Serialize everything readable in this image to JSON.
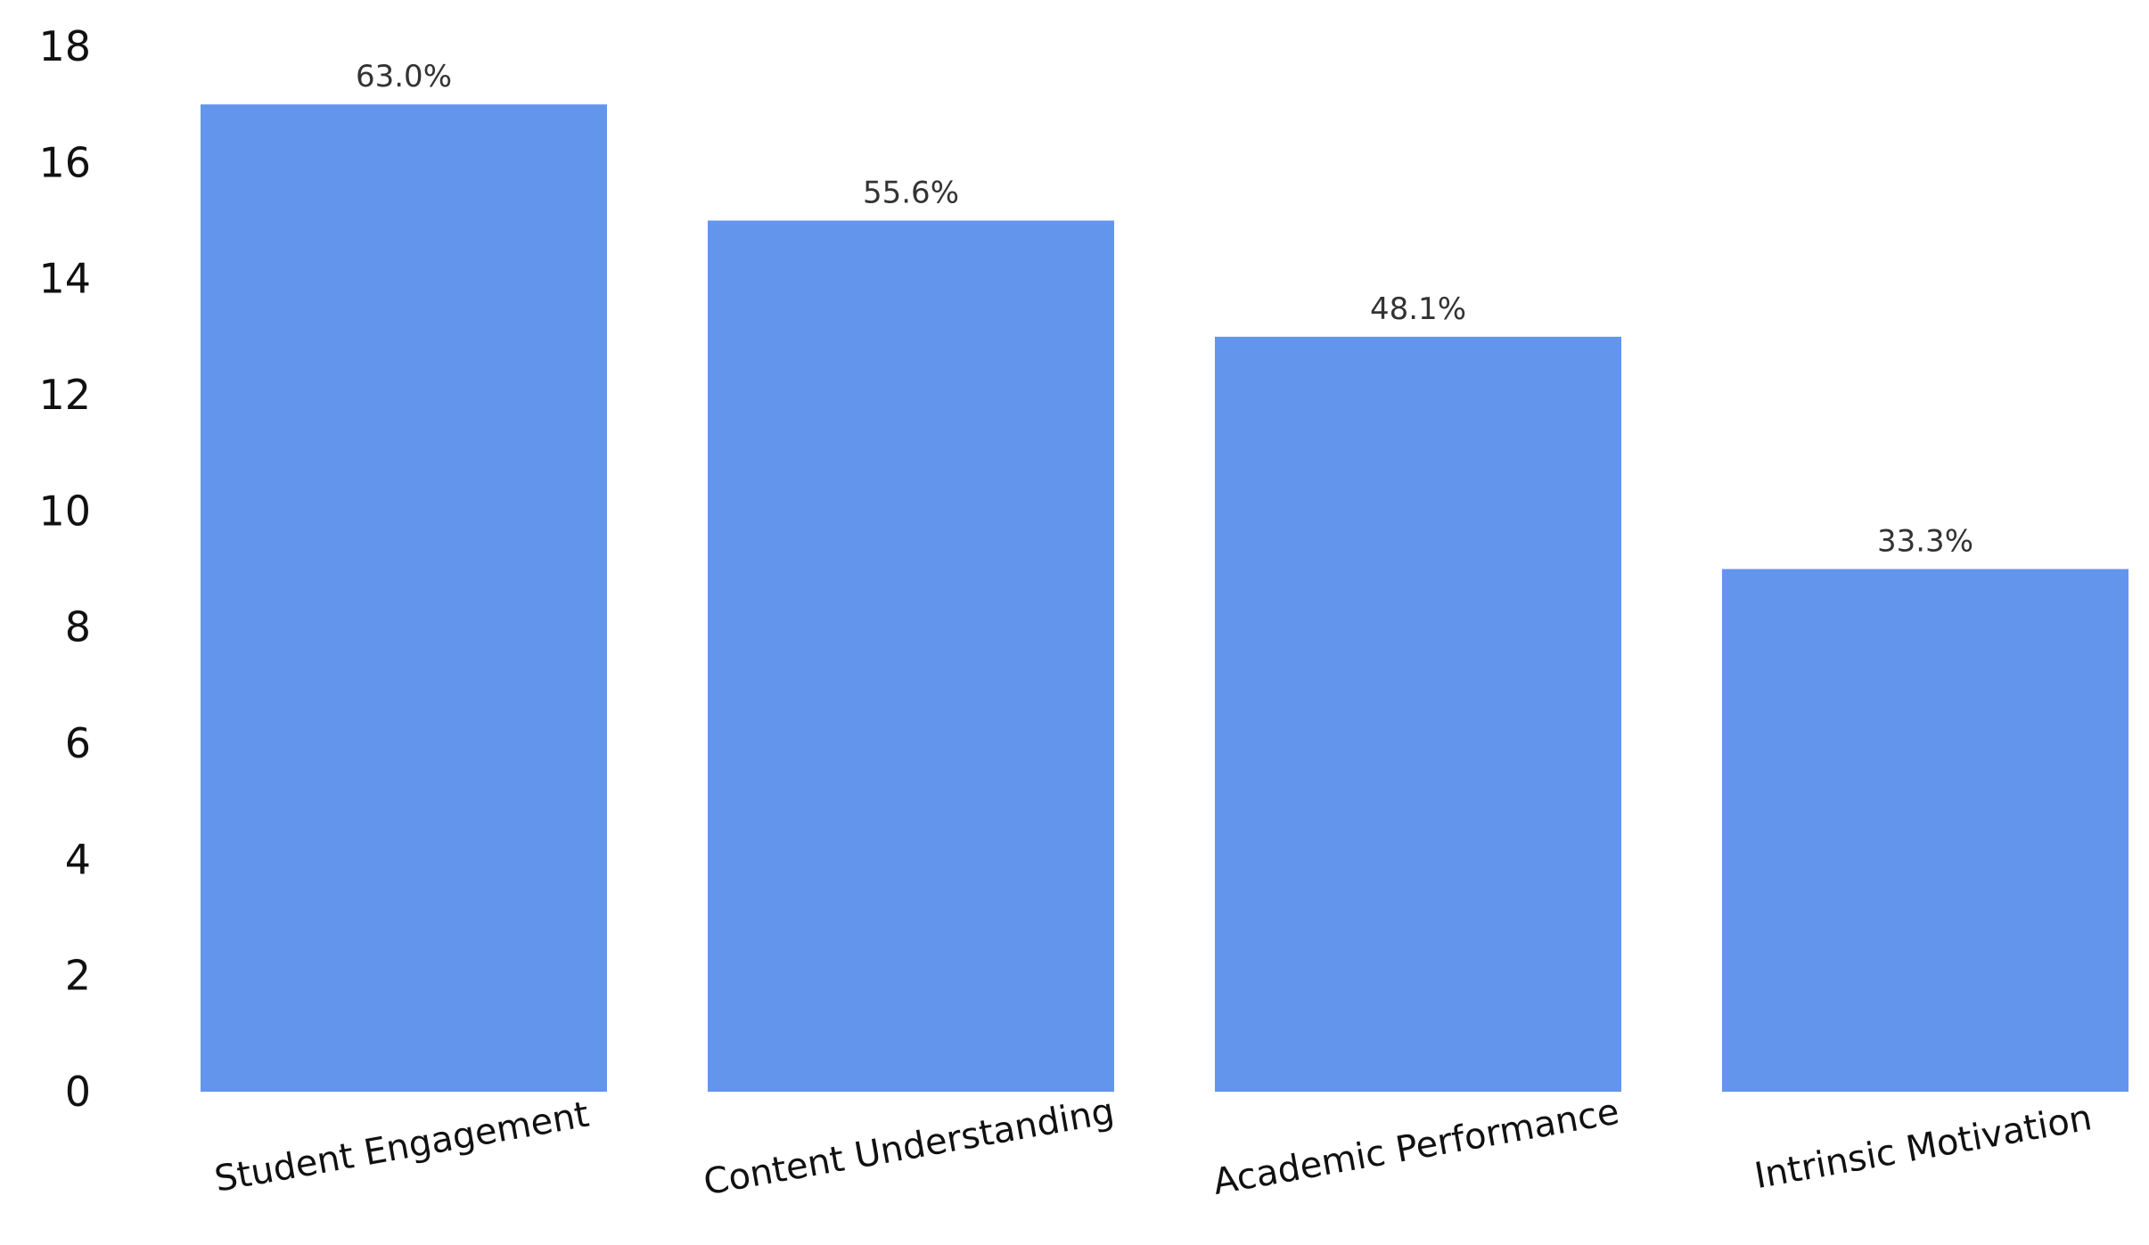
{
  "chart_data": {
    "type": "bar",
    "title": "",
    "xlabel": "",
    "ylabel": "",
    "categories": [
      "Student Engagement",
      "Content Understanding",
      "Academic Performance",
      "Intrinsic Motivation"
    ],
    "values": [
      17,
      15,
      13,
      9
    ],
    "data_labels": [
      "63.0%",
      "55.6%",
      "48.1%",
      "33.3%"
    ],
    "ylim": [
      0,
      18
    ],
    "yticks": [
      "0",
      "2",
      "4",
      "6",
      "8",
      "10",
      "12",
      "14",
      "16",
      "18"
    ],
    "grid": false,
    "legend": "none",
    "bar_color": "#6495ED"
  }
}
